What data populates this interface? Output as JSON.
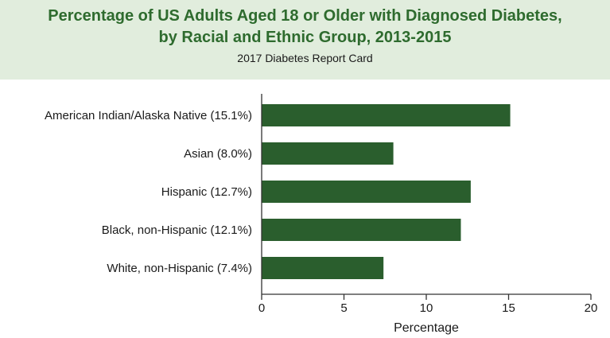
{
  "header": {
    "title_line1": "Percentage of US Adults Aged 18 or Older with Diagnosed Diabetes,",
    "title_line2": "by Racial and Ethnic Group, 2013-2015",
    "subtitle": "2017 Diabetes Report Card"
  },
  "colors": {
    "bar": "#2a5e2d",
    "header_background": "#e1eddd",
    "title": "#2e6b2e"
  },
  "chart_data": {
    "type": "bar",
    "orientation": "horizontal",
    "title": "Percentage of US Adults Aged 18 or Older with Diagnosed Diabetes, by Racial and Ethnic Group, 2013-2015",
    "subtitle": "2017 Diabetes Report Card",
    "categories": [
      "American Indian/Alaska Native (15.1%)",
      "Asian (8.0%)",
      "Hispanic (12.7%)",
      "Black, non-Hispanic (12.1%)",
      "White, non-Hispanic (7.4%)"
    ],
    "values": [
      15.1,
      8.0,
      12.7,
      12.1,
      7.4
    ],
    "xlabel": "Percentage",
    "ylabel": "",
    "xlim": [
      0,
      20
    ],
    "xticks": [
      0,
      5,
      10,
      15,
      20
    ],
    "grid": false,
    "legend": "none"
  }
}
